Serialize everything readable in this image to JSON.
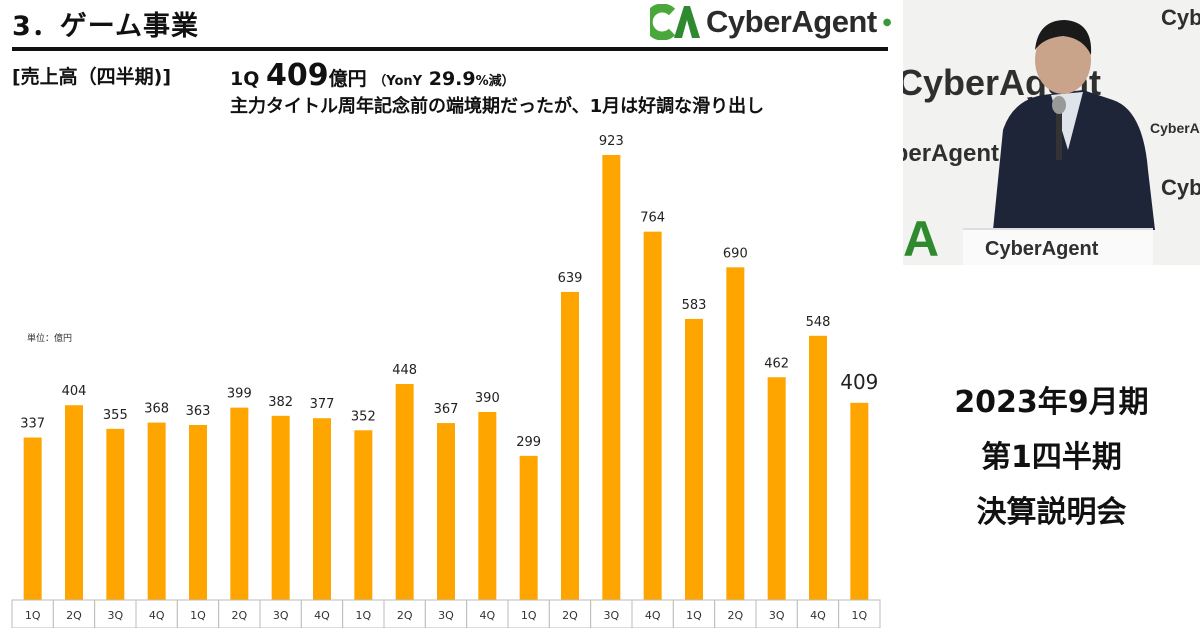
{
  "header": {
    "title": "3．ゲーム事業",
    "logo_text": "CyberAgent",
    "logo_mark": "CA"
  },
  "summary": {
    "section_label": "[売上高（四半期)]",
    "quarter": "1Q",
    "amount": "409",
    "unit": "億円",
    "yoy_open": "（YonY",
    "yoy_value": "29.9",
    "yoy_unit": "%減）",
    "headline": "主力タイトル周年記念前の端境期だったが、1月は好調な滑り出し"
  },
  "chart_data": {
    "type": "bar",
    "unit_label": "単位：億円",
    "categories": [
      "1Q",
      "2Q",
      "3Q",
      "4Q",
      "1Q",
      "2Q",
      "3Q",
      "4Q",
      "1Q",
      "2Q",
      "3Q",
      "4Q",
      "1Q",
      "2Q",
      "3Q",
      "4Q",
      "1Q",
      "2Q",
      "3Q",
      "4Q",
      "1Q"
    ],
    "values": [
      337,
      404,
      355,
      368,
      363,
      399,
      382,
      377,
      352,
      448,
      367,
      390,
      299,
      639,
      923,
      764,
      583,
      690,
      462,
      548,
      409
    ],
    "ylim": [
      0,
      960
    ],
    "bar_color": "#FFA500",
    "grid": false
  },
  "video": {
    "backdrop_text": "CyberAgent",
    "podium_text": "CyberAgent"
  },
  "event": {
    "lines": [
      "2023年9月期",
      "第1四半期",
      "決算説明会"
    ]
  }
}
